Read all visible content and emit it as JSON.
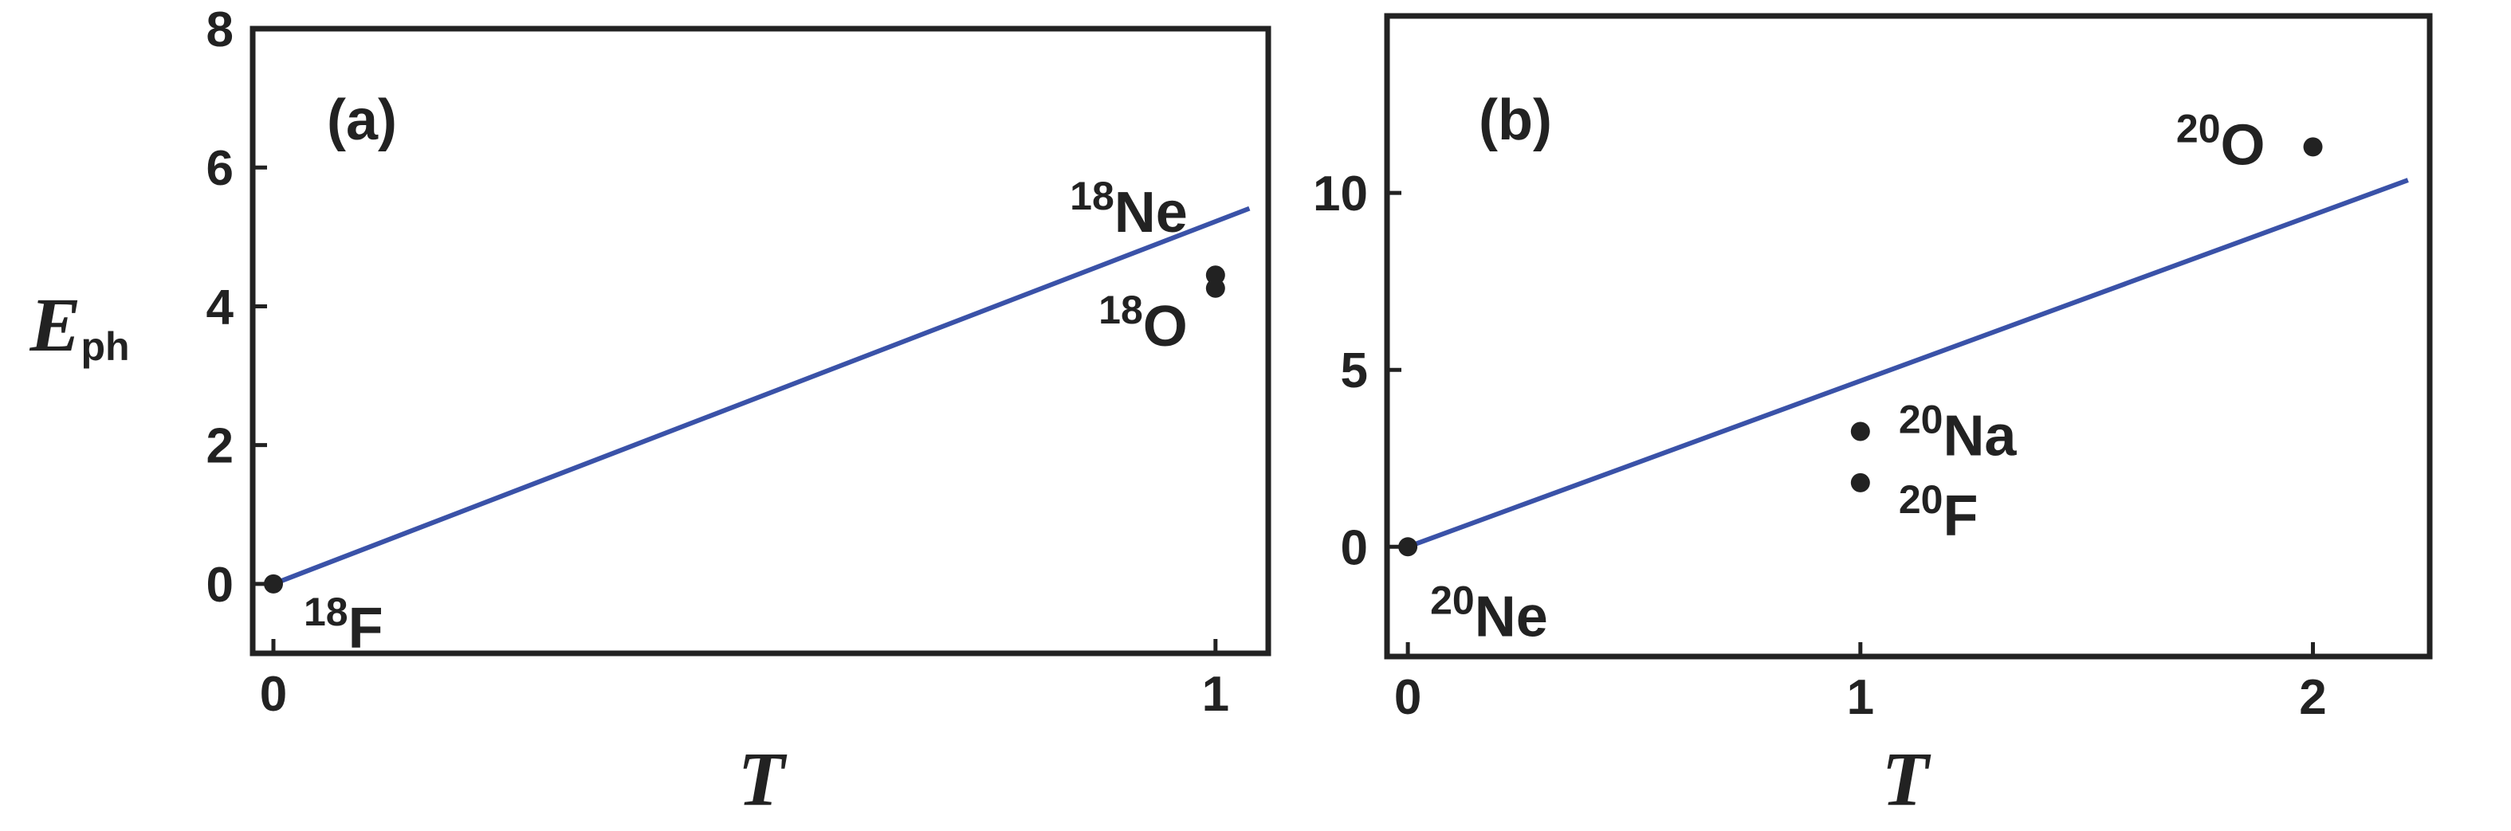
{
  "chart_data": [
    {
      "type": "scatter",
      "panel_label": "(a)",
      "xlabel": "T",
      "ylabel": {
        "main": "E",
        "sub": "ph"
      },
      "xlim": [
        -0.022,
        1.056
      ],
      "ylim": [
        -1,
        8
      ],
      "xticks": [
        0,
        1
      ],
      "yticks": [
        0,
        2,
        4,
        6,
        8
      ],
      "points": {
        "color": "#222222",
        "x": [
          0,
          1,
          1
        ],
        "y": [
          0,
          4.26,
          4.45
        ],
        "labels": [
          {
            "mass": "18",
            "symbol": "F"
          },
          {
            "mass": "18",
            "symbol": "O"
          },
          {
            "mass": "18",
            "symbol": "Ne"
          }
        ]
      },
      "line": {
        "color": "#3a52a8",
        "x": [
          0,
          1.036
        ],
        "y": [
          0,
          5.41
        ]
      }
    },
    {
      "type": "scatter",
      "panel_label": "(b)",
      "xlabel": "T",
      "xlim": [
        -0.046,
        2.258
      ],
      "ylim": [
        -3.1,
        15
      ],
      "xticks": [
        0,
        1,
        2
      ],
      "yticks": [
        0,
        5,
        10
      ],
      "points": {
        "color": "#222222",
        "x": [
          0,
          1,
          1,
          2
        ],
        "y": [
          0,
          3.26,
          1.81,
          11.3
        ],
        "labels": [
          {
            "mass": "20",
            "symbol": "Ne"
          },
          {
            "mass": "20",
            "symbol": "Na"
          },
          {
            "mass": "20",
            "symbol": "F"
          },
          {
            "mass": "20",
            "symbol": "O"
          }
        ]
      },
      "line": {
        "color": "#3a52a8",
        "x": [
          0,
          2.21
        ],
        "y": [
          0,
          10.36
        ]
      }
    }
  ]
}
